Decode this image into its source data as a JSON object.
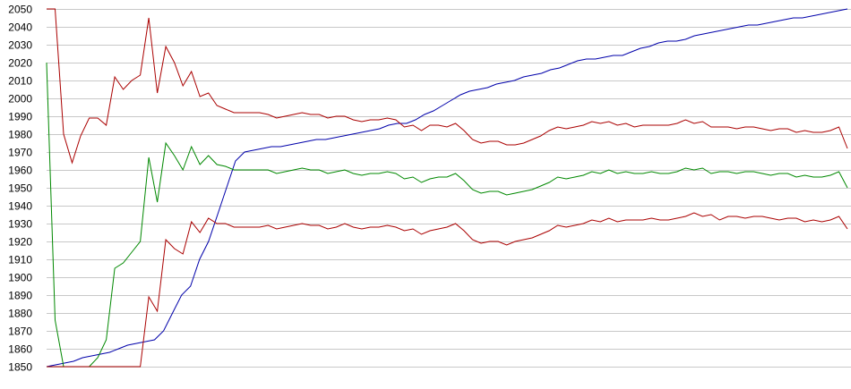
{
  "chart_data": {
    "type": "line",
    "title": "",
    "xlabel": "",
    "ylabel": "",
    "ylim": [
      1850,
      2050
    ],
    "y_ticks": [
      1850,
      1860,
      1870,
      1880,
      1890,
      1900,
      1910,
      1920,
      1930,
      1940,
      1950,
      1960,
      1970,
      1980,
      1990,
      2000,
      2010,
      2020,
      2030,
      2040,
      2050
    ],
    "y_tick_labels": [
      "1850",
      "1860",
      "1870",
      "1880",
      "1890",
      "1900",
      "1910",
      "1920",
      "1930",
      "1940",
      "1950",
      "1960",
      "1970",
      "1980",
      "1990",
      "2000",
      "2010",
      "2020",
      "2030",
      "2040",
      "2050"
    ],
    "x_labels": [],
    "grid": {
      "horizontal": true,
      "vertical": false
    },
    "legend": "none",
    "series": [
      {
        "color": "#0000aa",
        "values": [
          1850,
          1851,
          1852,
          1853,
          1855,
          1856,
          1857,
          1858,
          1860,
          1862,
          1863,
          1864,
          1865,
          1870,
          1880,
          1890,
          1895,
          1910,
          1920,
          1935,
          1950,
          1965,
          1970,
          1971,
          1972,
          1973,
          1973,
          1974,
          1975,
          1976,
          1977,
          1977,
          1978,
          1979,
          1980,
          1981,
          1982,
          1983,
          1985,
          1986,
          1986,
          1988,
          1991,
          1993,
          1996,
          1999,
          2002,
          2004,
          2005,
          2006,
          2008,
          2009,
          2010,
          2012,
          2013,
          2014,
          2016,
          2017,
          2019,
          2021,
          2022,
          2022,
          2023,
          2024,
          2024,
          2026,
          2028,
          2029,
          2031,
          2032,
          2032,
          2033,
          2035,
          2036,
          2037,
          2038,
          2039,
          2040,
          2041,
          2041,
          2042,
          2043,
          2044,
          2045,
          2045,
          2046,
          2047,
          2048,
          2049,
          2050
        ]
      },
      {
        "color": "#aa0000",
        "values": [
          2050,
          2050,
          1980,
          1964,
          1979,
          1989,
          1989,
          1985,
          2012,
          2005,
          2010,
          2013,
          2045,
          2003,
          2029,
          2020,
          2007,
          2015,
          2001,
          2003,
          1996,
          1994,
          1992,
          1992,
          1992,
          1992,
          1991,
          1989,
          1990,
          1991,
          1992,
          1991,
          1991,
          1989,
          1990,
          1990,
          1988,
          1987,
          1988,
          1988,
          1989,
          1988,
          1984,
          1985,
          1982,
          1985,
          1985,
          1984,
          1986,
          1982,
          1977,
          1975,
          1976,
          1976,
          1974,
          1974,
          1975,
          1977,
          1979,
          1982,
          1984,
          1983,
          1984,
          1985,
          1987,
          1986,
          1987,
          1985,
          1986,
          1984,
          1985,
          1985,
          1985,
          1985,
          1986,
          1988,
          1986,
          1987,
          1984,
          1984,
          1984,
          1983,
          1984,
          1984,
          1983,
          1982,
          1983,
          1983,
          1981,
          1982,
          1981,
          1981,
          1982,
          1984,
          1972
        ]
      },
      {
        "color": "#008800",
        "values": [
          2020,
          1876,
          1850,
          1850,
          1850,
          1850,
          1855,
          1865,
          1905,
          1908,
          1914,
          1920,
          1967,
          1942,
          1975,
          1968,
          1960,
          1973,
          1963,
          1968,
          1963,
          1962,
          1960,
          1960,
          1960,
          1960,
          1960,
          1958,
          1959,
          1960,
          1961,
          1960,
          1960,
          1958,
          1959,
          1960,
          1958,
          1957,
          1958,
          1958,
          1959,
          1958,
          1955,
          1956,
          1953,
          1955,
          1956,
          1956,
          1958,
          1954,
          1949,
          1947,
          1948,
          1948,
          1946,
          1947,
          1948,
          1949,
          1951,
          1953,
          1956,
          1955,
          1956,
          1957,
          1959,
          1958,
          1960,
          1958,
          1959,
          1958,
          1958,
          1959,
          1958,
          1958,
          1959,
          1961,
          1960,
          1961,
          1958,
          1959,
          1959,
          1958,
          1959,
          1959,
          1958,
          1957,
          1958,
          1958,
          1956,
          1957,
          1956,
          1956,
          1957,
          1959,
          1950
        ]
      },
      {
        "color": "#aa0000",
        "values": [
          1850,
          1850,
          1850,
          1850,
          1850,
          1850,
          1850,
          1850,
          1850,
          1850,
          1850,
          1850,
          1889,
          1881,
          1921,
          1916,
          1913,
          1931,
          1925,
          1933,
          1930,
          1930,
          1928,
          1928,
          1928,
          1928,
          1929,
          1927,
          1928,
          1929,
          1930,
          1929,
          1929,
          1927,
          1928,
          1930,
          1928,
          1927,
          1928,
          1928,
          1929,
          1928,
          1926,
          1927,
          1924,
          1926,
          1927,
          1928,
          1930,
          1926,
          1921,
          1919,
          1920,
          1920,
          1918,
          1920,
          1921,
          1922,
          1924,
          1926,
          1929,
          1928,
          1929,
          1930,
          1932,
          1931,
          1933,
          1931,
          1932,
          1932,
          1932,
          1933,
          1932,
          1932,
          1933,
          1934,
          1936,
          1934,
          1935,
          1932,
          1934,
          1934,
          1933,
          1934,
          1934,
          1933,
          1932,
          1933,
          1933,
          1931,
          1932,
          1931,
          1932,
          1934,
          1927
        ]
      }
    ]
  }
}
